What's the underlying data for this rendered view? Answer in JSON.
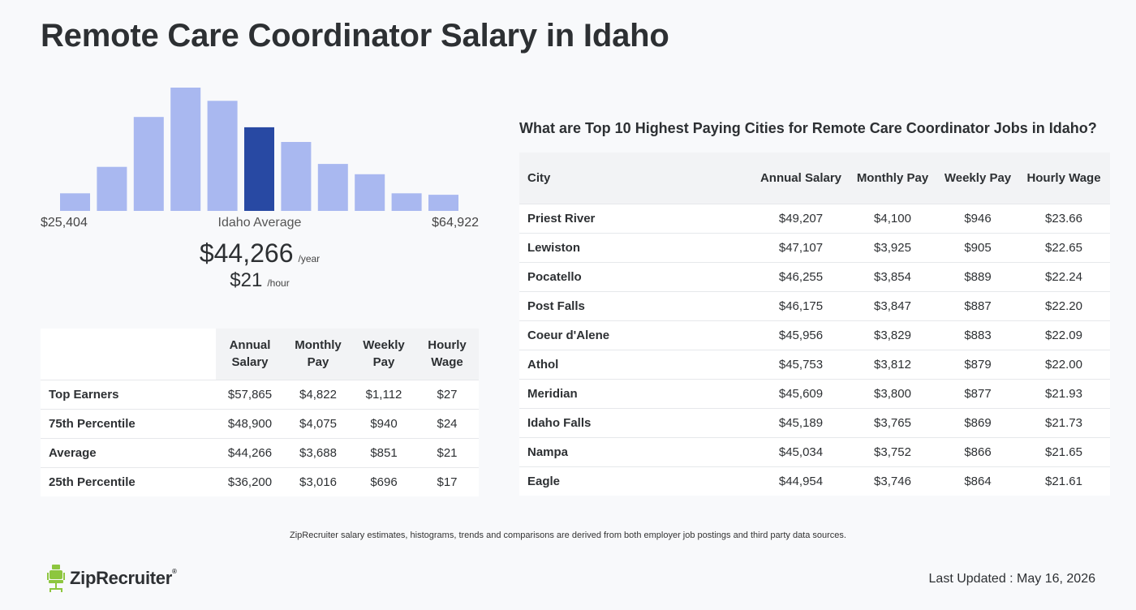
{
  "title": "Remote Care Coordinator Salary in Idaho",
  "chart_data": {
    "type": "bar",
    "values": [
      12,
      30,
      64,
      84,
      75,
      57,
      47,
      32,
      25,
      12,
      11
    ],
    "highlight_index": 5,
    "colors": {
      "bar": "#a9b8f0",
      "highlight": "#2849a3"
    },
    "min_label": "$25,404",
    "center_label": "Idaho Average",
    "max_label": "$64,922"
  },
  "average": {
    "year_value": "$44,266",
    "year_unit": "/year",
    "hour_value": "$21",
    "hour_unit": "/hour"
  },
  "percentile_table": {
    "headers": [
      "Annual Salary",
      "Monthly Pay",
      "Weekly Pay",
      "Hourly Wage"
    ],
    "rows": [
      {
        "label": "Top Earners",
        "values": [
          "$57,865",
          "$4,822",
          "$1,112",
          "$27"
        ]
      },
      {
        "label": "75th Percentile",
        "values": [
          "$48,900",
          "$4,075",
          "$940",
          "$24"
        ]
      },
      {
        "label": "Average",
        "values": [
          "$44,266",
          "$3,688",
          "$851",
          "$21"
        ]
      },
      {
        "label": "25th Percentile",
        "values": [
          "$36,200",
          "$3,016",
          "$696",
          "$17"
        ]
      }
    ]
  },
  "cities": {
    "heading": "What are Top 10 Highest Paying Cities for Remote Care Coordinator Jobs in Idaho?",
    "headers": [
      "City",
      "Annual Salary",
      "Monthly Pay",
      "Weekly Pay",
      "Hourly Wage"
    ],
    "rows": [
      {
        "city": "Priest River",
        "values": [
          "$49,207",
          "$4,100",
          "$946",
          "$23.66"
        ]
      },
      {
        "city": "Lewiston",
        "values": [
          "$47,107",
          "$3,925",
          "$905",
          "$22.65"
        ]
      },
      {
        "city": "Pocatello",
        "values": [
          "$46,255",
          "$3,854",
          "$889",
          "$22.24"
        ]
      },
      {
        "city": "Post Falls",
        "values": [
          "$46,175",
          "$3,847",
          "$887",
          "$22.20"
        ]
      },
      {
        "city": "Coeur d'Alene",
        "values": [
          "$45,956",
          "$3,829",
          "$883",
          "$22.09"
        ]
      },
      {
        "city": "Athol",
        "values": [
          "$45,753",
          "$3,812",
          "$879",
          "$22.00"
        ]
      },
      {
        "city": "Meridian",
        "values": [
          "$45,609",
          "$3,800",
          "$877",
          "$21.93"
        ]
      },
      {
        "city": "Idaho Falls",
        "values": [
          "$45,189",
          "$3,765",
          "$869",
          "$21.73"
        ]
      },
      {
        "city": "Nampa",
        "values": [
          "$45,034",
          "$3,752",
          "$866",
          "$21.65"
        ]
      },
      {
        "city": "Eagle",
        "values": [
          "$44,954",
          "$3,746",
          "$864",
          "$21.61"
        ]
      }
    ]
  },
  "footnote": "ZipRecruiter salary estimates, histograms, trends and comparisons are derived from both employer job postings and third party data sources.",
  "logo": {
    "name": "ZipRecruiter",
    "reg": "®",
    "color": "#8dc63f"
  },
  "last_updated": "Last Updated : May 16, 2026"
}
